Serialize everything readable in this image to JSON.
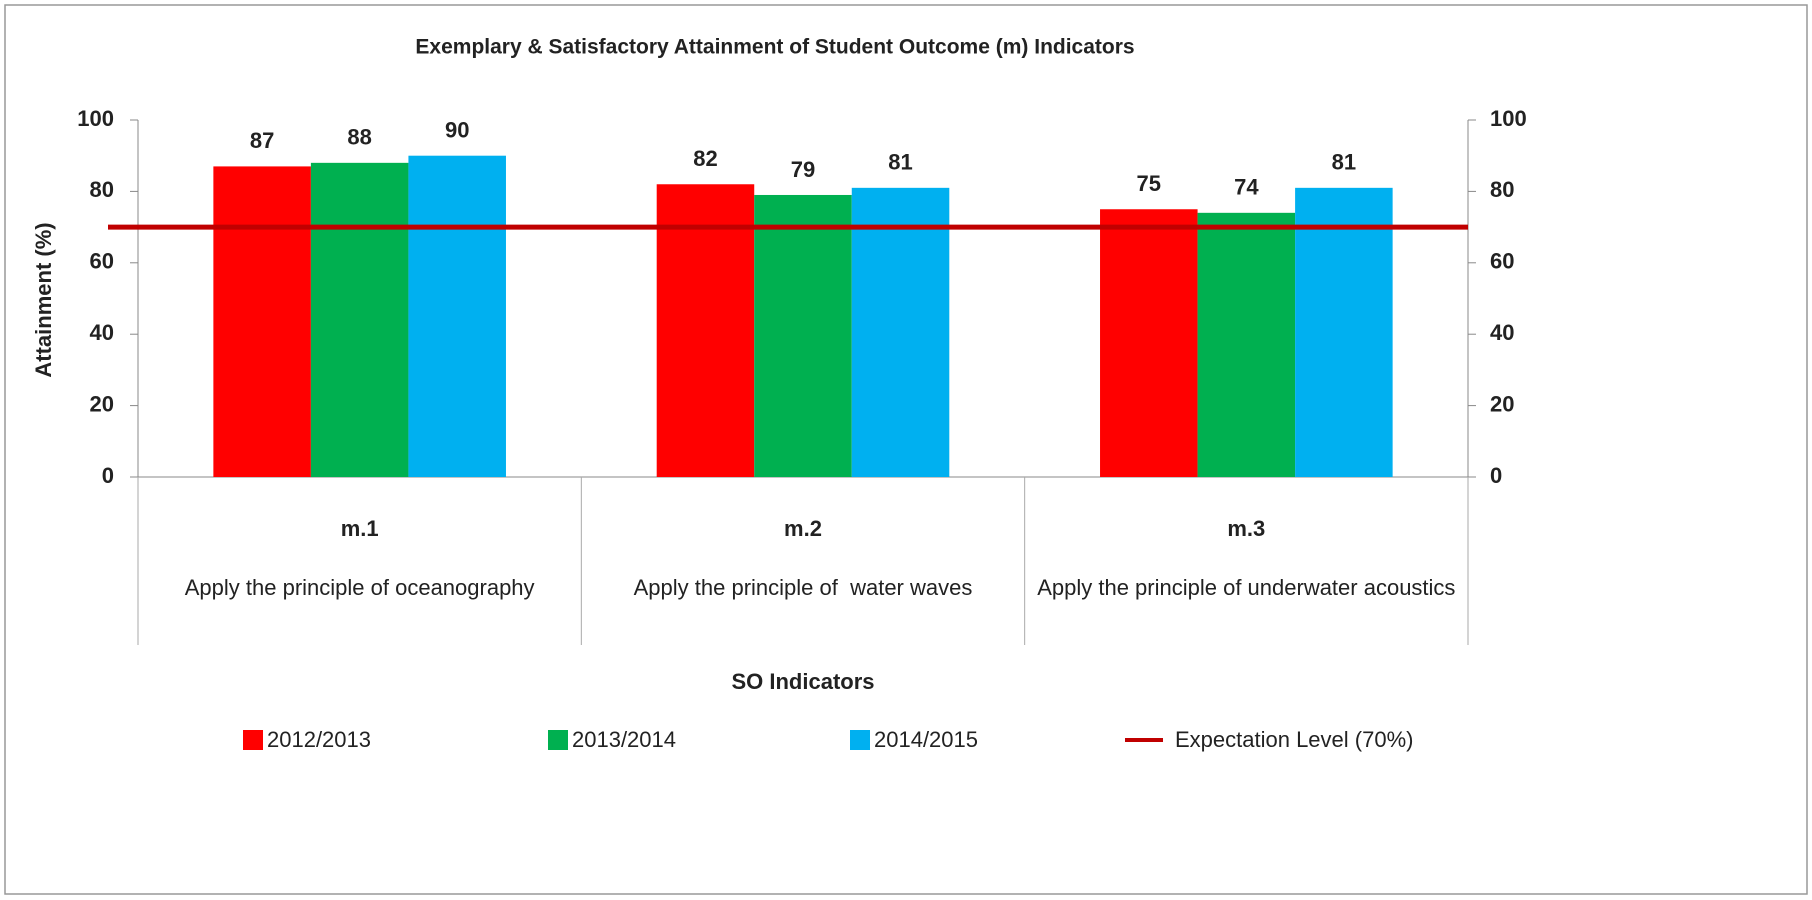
{
  "chart_data": {
    "type": "bar",
    "title": "Exemplary & Satisfactory Attainment of Student Outcome (m)  Indicators",
    "y_label": "Attainment (%)",
    "x_label": "SO Indicators",
    "categories": [
      "m.1",
      "m.2",
      "m.3"
    ],
    "category_labels": [
      "Apply the principle of oceanography",
      "Apply the principle of  water waves",
      "Apply the principle of underwater acoustics"
    ],
    "series": [
      {
        "name": "2012/2013",
        "color": "#ff0000",
        "values": [
          87,
          82,
          75
        ]
      },
      {
        "name": "2013/2014",
        "color": "#00b050",
        "values": [
          88,
          79,
          74
        ]
      },
      {
        "name": "2014/2015",
        "color": "#00b0f0",
        "values": [
          90,
          81,
          81
        ]
      }
    ],
    "reference_line": {
      "name": "Expectation Level (70%)",
      "value": 70,
      "color": "#c00000"
    },
    "ylim": [
      0,
      100
    ],
    "yticks": [
      0,
      20,
      40,
      60,
      80,
      100
    ],
    "y2lim": [
      0,
      100
    ],
    "y2ticks": [
      0,
      20,
      40,
      60,
      80,
      100
    ],
    "grid": false
  }
}
